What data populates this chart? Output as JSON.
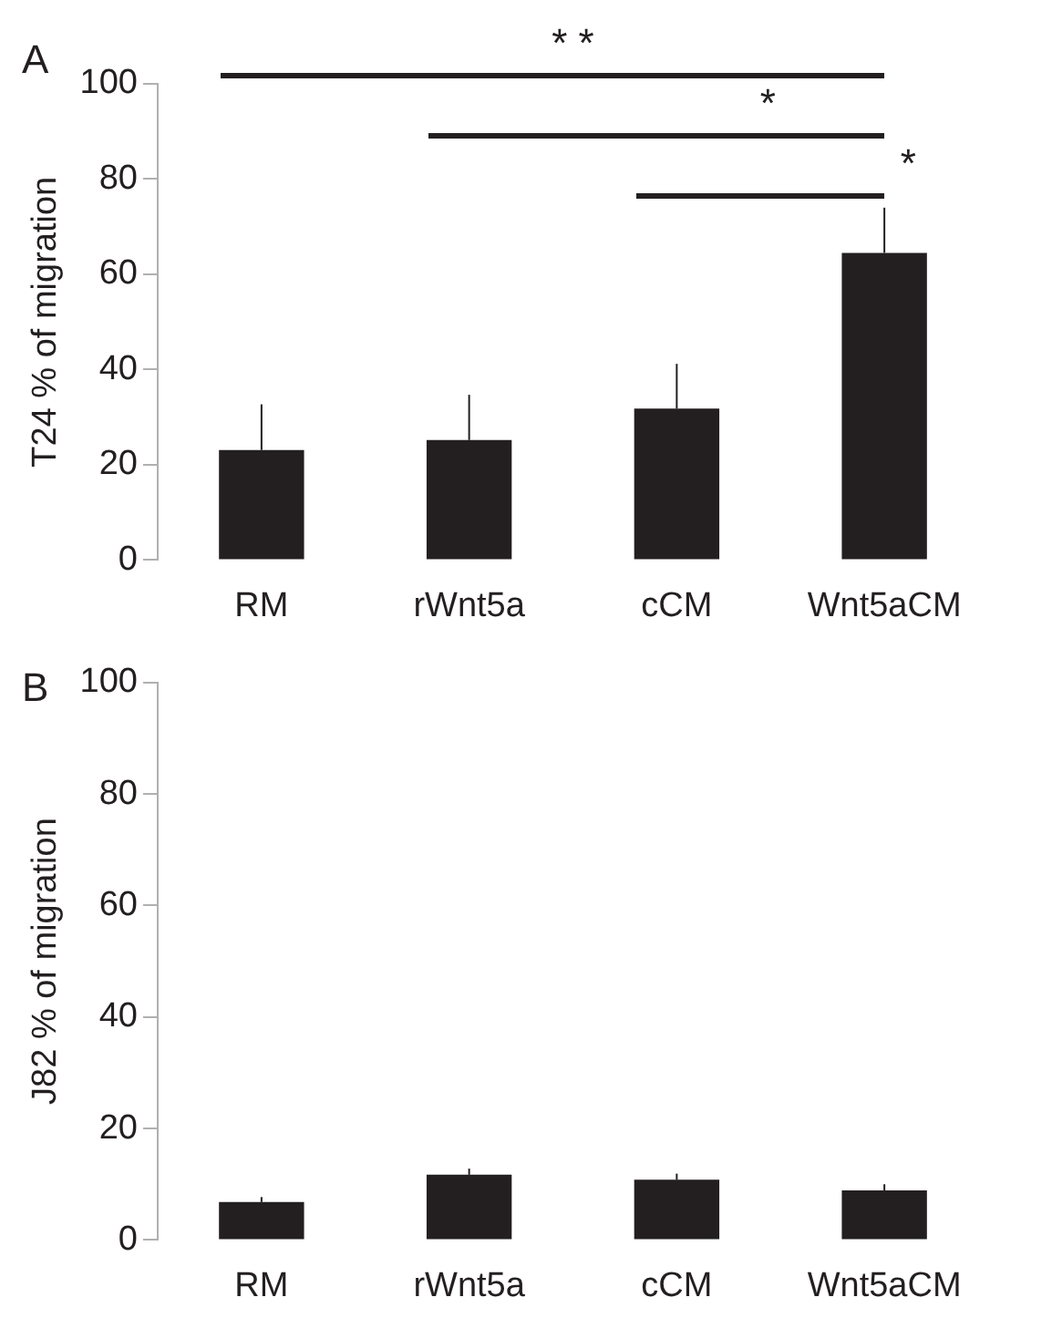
{
  "chart_data": [
    {
      "type": "bar",
      "title": "A",
      "ylabel": "T24 % of migration",
      "categories": [
        "RM",
        "rWnt5a",
        "cCM",
        "Wnt5aCM"
      ],
      "values": [
        23.1,
        25.2,
        31.8,
        64.5
      ],
      "errors": [
        [
          23.1,
          32.7
        ],
        [
          25.2,
          34.7
        ],
        [
          31.8,
          41.2
        ],
        [
          64.5,
          74.0
        ]
      ],
      "color": "#231f20",
      "ylim": [
        0,
        100
      ],
      "yticks": [
        0,
        20,
        40,
        60,
        80,
        100
      ],
      "grid": false,
      "legend": false,
      "annotations": [
        "* *",
        "*",
        "*"
      ]
    },
    {
      "type": "bar",
      "title": "B",
      "ylabel": "J82 % of migration",
      "categories": [
        "RM",
        "rWnt5a",
        "cCM",
        "Wnt5aCM"
      ],
      "values": [
        6.8,
        11.7,
        10.8,
        8.9
      ],
      "errors": [
        [
          6.8,
          7.7
        ],
        [
          11.7,
          12.8
        ],
        [
          10.8,
          11.9
        ],
        [
          8.9,
          10.0
        ]
      ],
      "color": "#231f20",
      "ylim": [
        0,
        100
      ],
      "yticks": [
        0,
        20,
        40,
        60,
        80,
        100
      ],
      "grid": false,
      "legend": false
    }
  ]
}
